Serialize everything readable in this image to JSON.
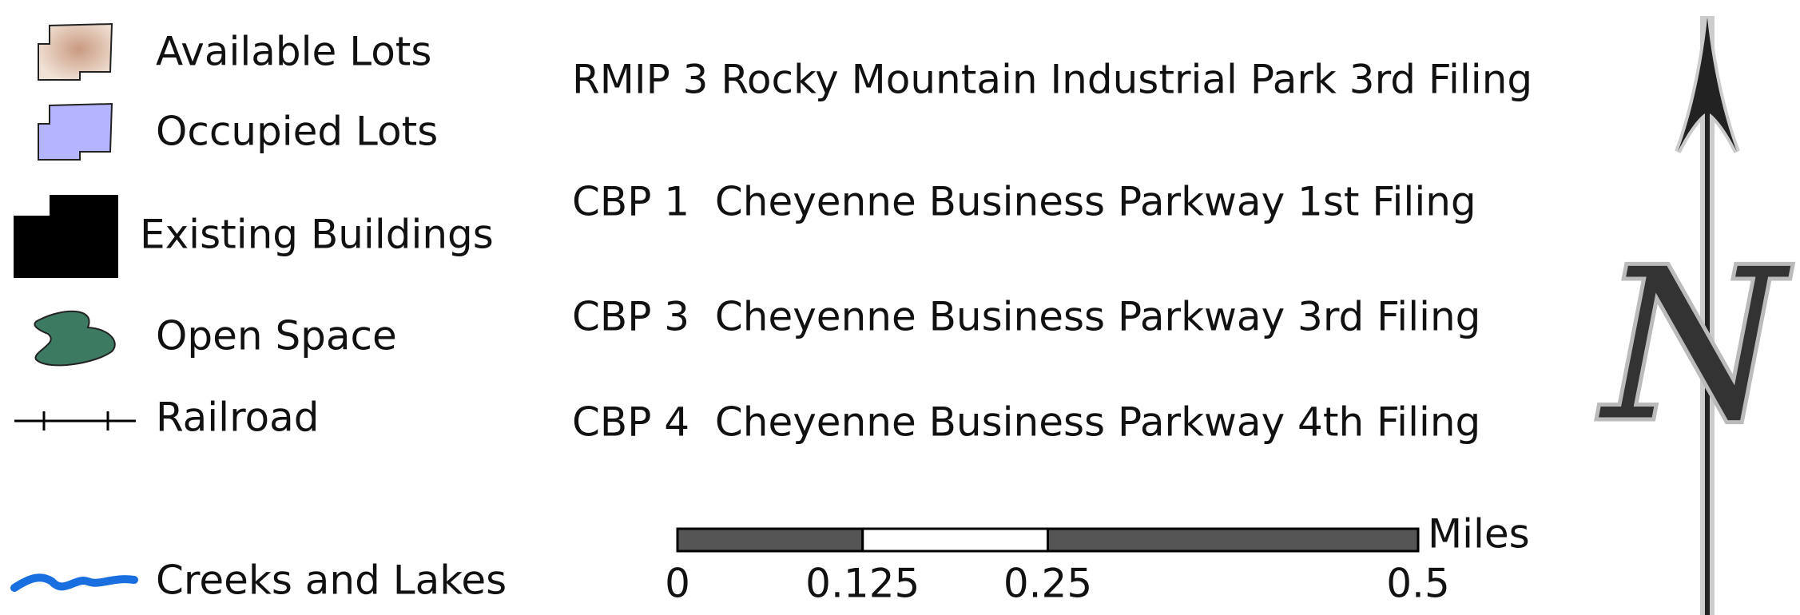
{
  "legend": {
    "items": [
      {
        "label": "Available Lots"
      },
      {
        "label": "Occupied Lots"
      },
      {
        "label": "Existing Buildings"
      },
      {
        "label": "Open Space"
      },
      {
        "label": "Railroad"
      },
      {
        "label": "Creeks and Lakes"
      }
    ]
  },
  "filings": [
    "RMIP 3 Rocky Mountain Industrial Park 3rd Filing",
    "CBP 1  Cheyenne Business Parkway 1st Filing",
    "CBP 3  Cheyenne Business Parkway 3rd Filing",
    "CBP 4  Cheyenne Business Parkway 4th Filing"
  ],
  "scale_bar": {
    "unit": "Miles",
    "ticks": [
      0,
      0.125,
      0.25,
      0.5
    ]
  },
  "north_arrow": {
    "label": "N"
  }
}
